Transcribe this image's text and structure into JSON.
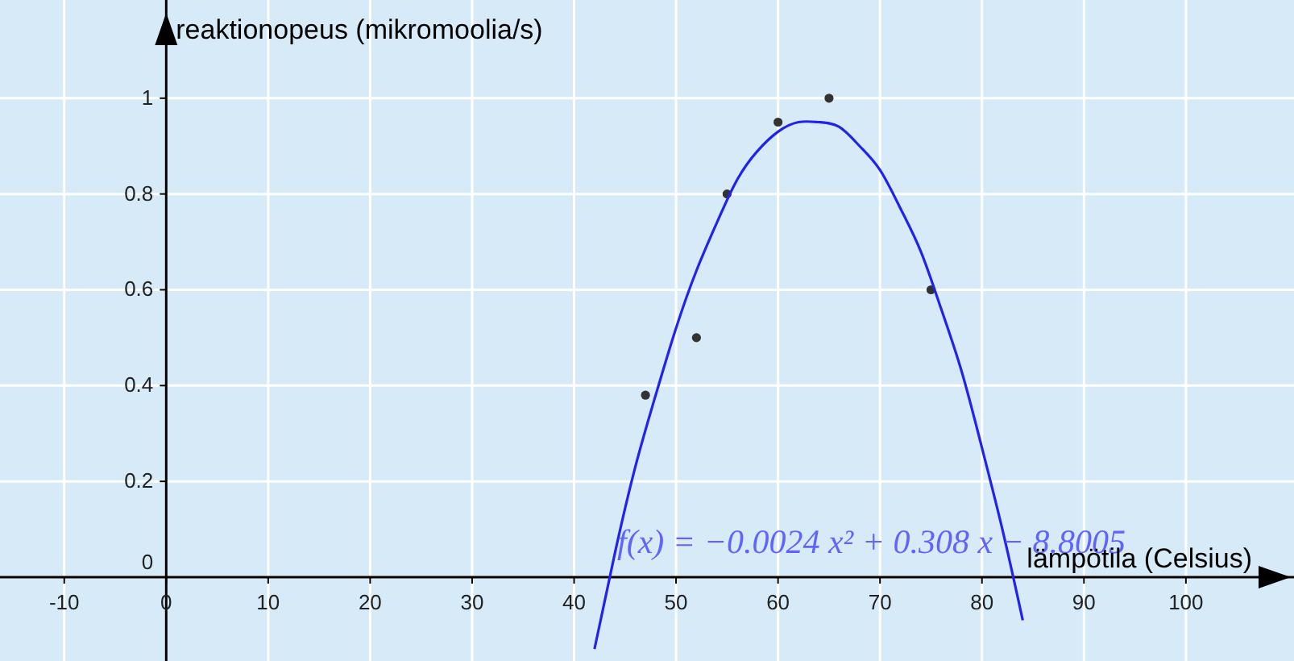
{
  "chart_data": {
    "type": "scatter",
    "xlabel": "lämpötila (Celsius)",
    "ylabel": "reaktionopeus (mikromoolia/s)",
    "annotations": [
      "f(x) = −0.0024 x² + 0.308 x − 8.8005"
    ],
    "xlim": [
      -16.3,
      110.6
    ],
    "ylim": [
      -0.175,
      1.205
    ],
    "xticks": [
      -10,
      0,
      10,
      20,
      30,
      40,
      50,
      60,
      70,
      80,
      90,
      100
    ],
    "yticks": [
      0,
      0.2,
      0.4,
      0.6,
      0.8,
      1
    ],
    "grid": true,
    "series": [
      {
        "color": "#333333",
        "marker": "circle",
        "x": [
          47,
          52,
          55,
          60,
          65,
          75
        ],
        "values": [
          0.38,
          0.5,
          0.8,
          0.95,
          1.0,
          0.6
        ]
      },
      {
        "type": "line",
        "color": "#2222ee",
        "marker": "none",
        "line_style": "solid",
        "x": [
          42,
          44,
          46,
          48,
          50,
          52,
          54,
          56,
          58,
          60,
          62,
          64,
          66,
          68,
          70,
          72,
          74,
          76,
          78,
          80,
          82,
          84
        ],
        "values": [
          -0.15,
          0.05,
          0.23,
          0.38,
          0.52,
          0.64,
          0.74,
          0.83,
          0.89,
          0.93,
          0.95,
          0.95,
          0.94,
          0.9,
          0.85,
          0.77,
          0.68,
          0.56,
          0.43,
          0.27,
          0.1,
          -0.09
        ]
      }
    ]
  }
}
